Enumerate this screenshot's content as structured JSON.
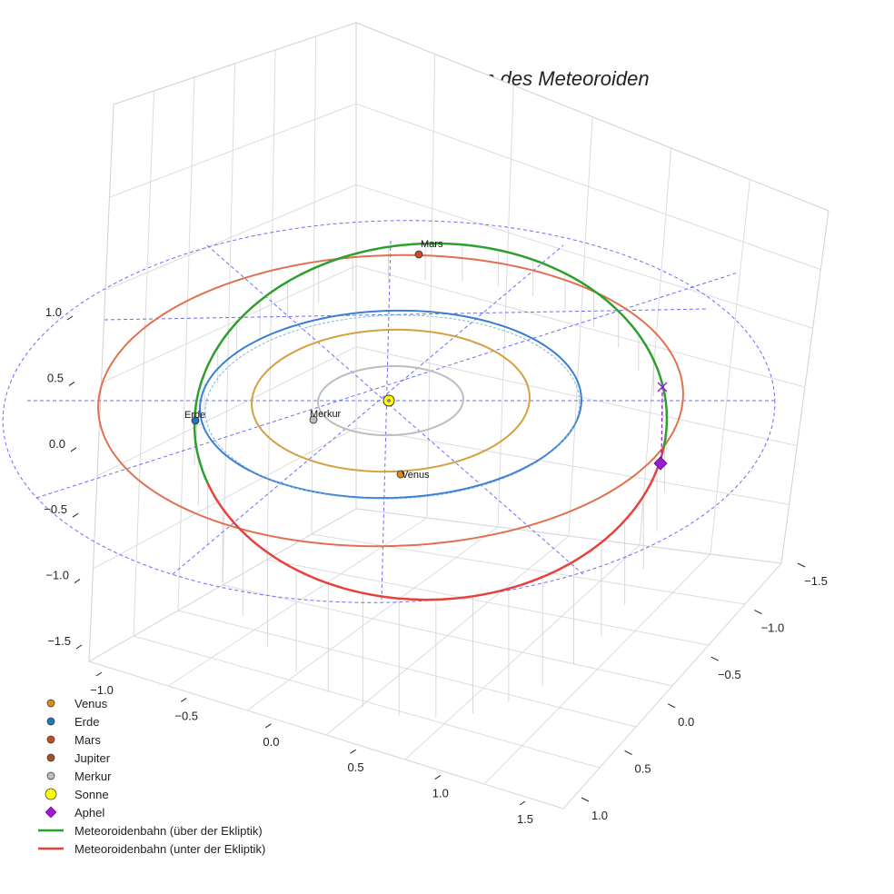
{
  "chart_data": {
    "type": "line",
    "title": "Heliozentrische Umlaufbahn des Meteoroiden",
    "projection": "3d",
    "grid": true,
    "legend_position": "bottom-left",
    "axes": {
      "x": {
        "ticks": [
          "−1.0",
          "−0.5",
          "0.0",
          "0.5",
          "1.0",
          "1.5"
        ]
      },
      "y": {
        "ticks": [
          "−1.5",
          "−1.0",
          "−0.5",
          "0.0",
          "0.5",
          "1.0"
        ]
      },
      "z": {
        "ticks": [
          "−1.5",
          "−1.0",
          "−0.5",
          "0.0",
          "0.5",
          "1.0"
        ]
      }
    },
    "planets": [
      {
        "name": "Merkur",
        "color": "#bbbbbb",
        "orbit_color": "#bdbdbd",
        "labeled": true
      },
      {
        "name": "Venus",
        "color": "#d98c1c",
        "orbit_color": "#d4a040",
        "labeled": true
      },
      {
        "name": "Erde",
        "color": "#1f77b4",
        "orbit_color": "#3a7fd0",
        "labeled": true
      },
      {
        "name": "Mars",
        "color": "#c94a26",
        "orbit_color": "#e07050",
        "labeled": true
      },
      {
        "name": "Jupiter",
        "color": "#a0522d",
        "labeled": false
      }
    ],
    "series": [
      {
        "name": "Meteoroidenbahn (über der Ekliptik)",
        "color": "#2ca02c"
      },
      {
        "name": "Meteoroidenbahn (unter der Ekliptik)",
        "color": "#e8413b"
      }
    ],
    "sun": {
      "name": "Sonne",
      "color": "#ffff00"
    },
    "aphel": {
      "name": "Aphel",
      "color": "#9b1ad4"
    }
  },
  "legend": [
    {
      "label": "Venus",
      "marker": "circle",
      "color": "#d98c1c"
    },
    {
      "label": "Erde",
      "marker": "circle",
      "color": "#1f77b4"
    },
    {
      "label": "Mars",
      "marker": "circle",
      "color": "#c94a26"
    },
    {
      "label": "Jupiter",
      "marker": "circle",
      "color": "#a0522d"
    },
    {
      "label": "Merkur",
      "marker": "circle",
      "color": "#bbbbbb"
    },
    {
      "label": "Sonne",
      "marker": "circle-large",
      "color": "#ffff00"
    },
    {
      "label": "Aphel",
      "marker": "diamond",
      "color": "#9b1ad4"
    },
    {
      "label": "Meteoroidenbahn (über der Ekliptik)",
      "marker": "line",
      "color": "#2ca02c"
    },
    {
      "label": "Meteoroidenbahn (unter der Ekliptik)",
      "marker": "line",
      "color": "#e8413b"
    }
  ]
}
